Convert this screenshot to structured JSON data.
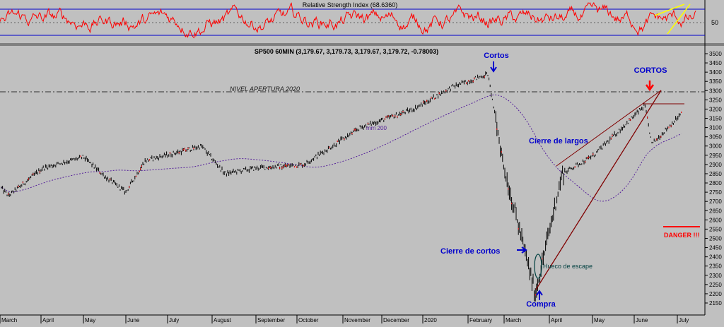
{
  "rsi_panel": {
    "title": "Relative Strength Index (68.6360)",
    "axis_label": "50",
    "color": "#ff0000",
    "band_color": "#0000cc"
  },
  "chart_data": [
    {
      "type": "line",
      "title": "Relative Strength Index (68.6360)",
      "ylim": [
        0,
        100
      ],
      "upper_band": 70,
      "lower_band": 30,
      "midline": 50,
      "y_ticks": [
        50
      ],
      "last_value": 68.636
    },
    {
      "type": "candlestick",
      "title": "SP500 60MIN (3,179.67, 3,179.73, 3,179.67, 3,179.72, -0.78003)",
      "ylim": [
        2150,
        3500
      ],
      "y_ticks": [
        2150,
        2200,
        2250,
        2300,
        2350,
        2400,
        2450,
        2500,
        2550,
        2600,
        2650,
        2700,
        2750,
        2800,
        2850,
        2900,
        2950,
        3000,
        3050,
        3100,
        3150,
        3200,
        3250,
        3300,
        3350,
        3400,
        3450,
        3500
      ],
      "x_labels": [
        "March",
        "April",
        "May",
        "June",
        "July",
        "August",
        "September",
        "October",
        "November",
        "December",
        "2020",
        "February",
        "March",
        "April",
        "May",
        "June",
        "July"
      ],
      "price_path": [
        {
          "month": "March 2019",
          "value": 2780
        },
        {
          "month": "March 2019",
          "value": 2730
        },
        {
          "month": "April 2019",
          "value": 2880
        },
        {
          "month": "May 2019",
          "value": 2940
        },
        {
          "month": "May 2019",
          "value": 2830
        },
        {
          "month": "June 2019",
          "value": 2750
        },
        {
          "month": "June 2019",
          "value": 2920
        },
        {
          "month": "July 2019",
          "value": 3000
        },
        {
          "month": "August 2019",
          "value": 2850
        },
        {
          "month": "September 2019",
          "value": 2880
        },
        {
          "month": "October 2019",
          "value": 2900
        },
        {
          "month": "November 2019",
          "value": 3100
        },
        {
          "month": "December 2019",
          "value": 3200
        },
        {
          "month": "January 2020",
          "value": 3320
        },
        {
          "month": "February 2020",
          "value": 3390
        },
        {
          "month": "March 2020",
          "value": 2900
        },
        {
          "month": "March 2020",
          "value": 2200
        },
        {
          "month": "April 2020",
          "value": 2850
        },
        {
          "month": "May 2020",
          "value": 2950
        },
        {
          "month": "June 2020",
          "value": 3220
        },
        {
          "month": "June 2020",
          "value": 3010
        },
        {
          "month": "July 2020",
          "value": 3180
        }
      ],
      "moving_average": {
        "label": "mm 200",
        "color": "#55209a"
      },
      "level_line": {
        "label": "NIVEL APERTURA 2020",
        "value": 3240
      },
      "danger_line": {
        "label": "DANGER !!!",
        "value": 2490,
        "color": "#ff0000"
      },
      "annotations": [
        {
          "text": "Cortos",
          "color": "#0000cc"
        },
        {
          "text": "CORTOS",
          "color": "#0000cc"
        },
        {
          "text": "Cierre de largos",
          "color": "#0000cc"
        },
        {
          "text": "Cierre de cortos",
          "color": "#0000cc"
        },
        {
          "text": "Compra",
          "color": "#0000cc"
        },
        {
          "text": "Hueco de escape",
          "color": "#004040"
        }
      ],
      "last": {
        "open": 3179.67,
        "high": 3179.73,
        "low": 3179.67,
        "close": 3179.72,
        "change": -0.78003
      }
    }
  ],
  "labels": {
    "main_title": "SP500 60MIN (3,179.67, 3,179.73, 3,179.67, 3,179.72, -0.78003)",
    "level": "NIVEL APERTURA 2020",
    "mm": "mm 200",
    "cortos": "Cortos",
    "cortos_upper": "CORTOS",
    "cierre_largos": "Cierre de largos",
    "cierre_cortos": "Cierre de cortos",
    "compra": "Compra",
    "hueco": "Hueco de escape",
    "danger": "DANGER !!!"
  }
}
